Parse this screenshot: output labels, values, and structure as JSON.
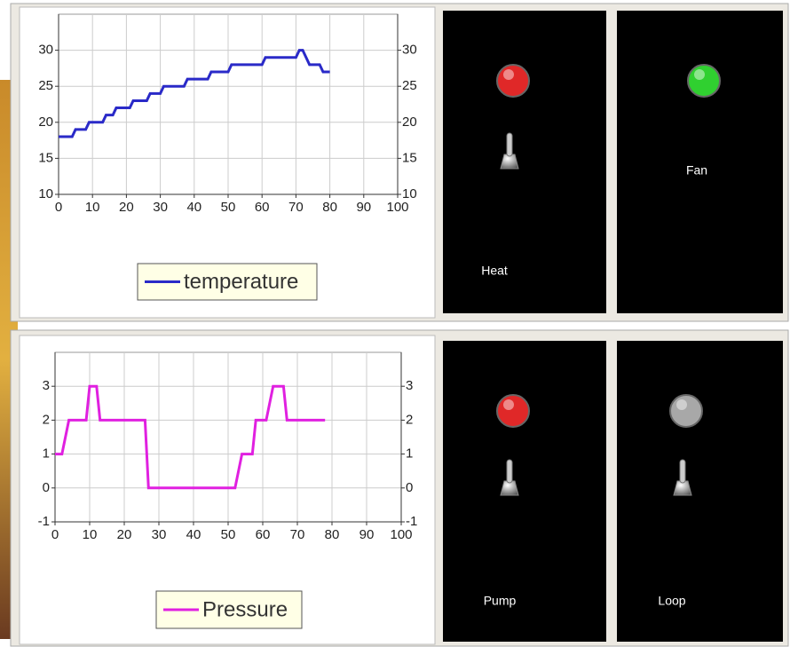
{
  "chart_data": [
    {
      "type": "line",
      "x": [
        0,
        4,
        5,
        8,
        9,
        13,
        14,
        16,
        17,
        21,
        22,
        26,
        27,
        30,
        31,
        37,
        38,
        44,
        45,
        50,
        51,
        60,
        61,
        70,
        71,
        72,
        74,
        77,
        78,
        80
      ],
      "series": [
        {
          "name": "temperature",
          "color": "#2a2ac8",
          "values": [
            18,
            18,
            19,
            19,
            20,
            20,
            21,
            21,
            22,
            22,
            23,
            23,
            24,
            24,
            25,
            25,
            26,
            26,
            27,
            27,
            28,
            28,
            29,
            29,
            30,
            30,
            28,
            28,
            27,
            27
          ]
        }
      ],
      "xlim": [
        0,
        100
      ],
      "xticks": [
        0,
        10,
        20,
        30,
        40,
        50,
        60,
        70,
        80,
        90,
        100
      ],
      "ylim": [
        10,
        35
      ],
      "yticks": [
        10,
        15,
        20,
        25,
        30
      ],
      "grid": true
    },
    {
      "type": "line",
      "x": [
        0,
        2,
        4,
        9,
        10,
        12,
        13,
        26,
        27,
        52,
        54,
        57,
        58,
        61,
        63,
        66,
        67,
        78
      ],
      "series": [
        {
          "name": "Pressure",
          "color": "#e020e0",
          "values": [
            1,
            1,
            2,
            2,
            3,
            3,
            2,
            2,
            0,
            0,
            1,
            1,
            2,
            2,
            3,
            3,
            2,
            2
          ]
        }
      ],
      "xlim": [
        0,
        100
      ],
      "xticks": [
        0,
        10,
        20,
        30,
        40,
        50,
        60,
        70,
        80,
        90,
        100
      ],
      "ylim": [
        -1,
        4
      ],
      "yticks": [
        -1,
        0,
        1,
        2,
        3
      ],
      "grid": true
    }
  ],
  "panels": [
    {
      "label": "Heat",
      "led_color": "#e02828",
      "switch": true
    },
    {
      "label": "Fan",
      "led_color": "#30d030",
      "switch": false
    },
    {
      "label": "Pump",
      "led_color": "#e02828",
      "switch": true
    },
    {
      "label": "Loop",
      "led_color": "#a8a8a8",
      "switch": true
    }
  ]
}
